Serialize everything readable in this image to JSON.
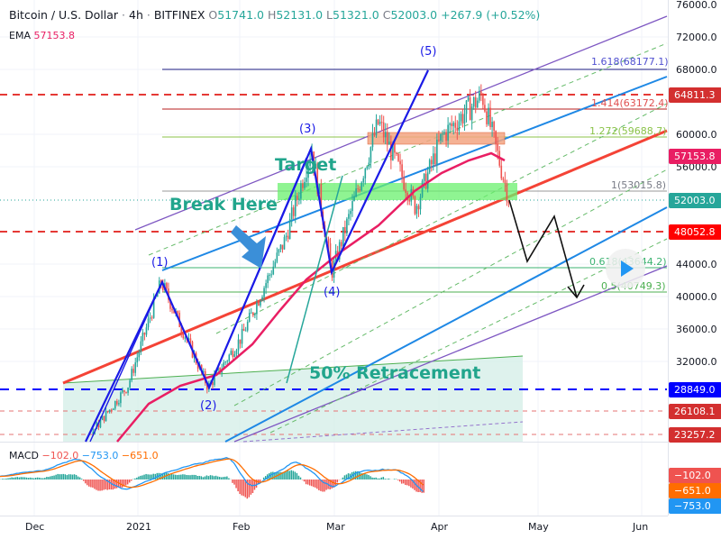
{
  "header": {
    "symbol": "Bitcoin / U.S. Dollar",
    "interval": "4h",
    "exchange": "BITFINEX",
    "open_label": "O",
    "open": "51741.0",
    "high_label": "H",
    "high": "52131.0",
    "low_label": "L",
    "low": "51321.0",
    "close_label": "C",
    "close": "52003.0",
    "change": "+267.9 (+0.52%)",
    "sep": "·"
  },
  "ema": {
    "label": "EMA",
    "value": "57153.8"
  },
  "macd": {
    "label": "MACD",
    "hist": "−102.0",
    "macd": "−753.0",
    "signal": "−651.0"
  },
  "price_axis": [
    "76000.0",
    "72000.0",
    "68000.0",
    "60000.0",
    "56000.0",
    "44000.0",
    "40000.0",
    "36000.0",
    "32000.0"
  ],
  "price_tags": [
    {
      "value": "64811.3",
      "color": "#d32f2f"
    },
    {
      "value": "57153.8",
      "color": "#e91e63"
    },
    {
      "value": "52003.0",
      "color": "#26a69a"
    },
    {
      "value": "48052.8",
      "color": "#ff0000"
    },
    {
      "value": "28849.0",
      "color": "#0000ff"
    },
    {
      "value": "26108.1",
      "color": "#d32f2f"
    },
    {
      "value": "23257.2",
      "color": "#d32f2f"
    }
  ],
  "macd_tags": [
    {
      "value": "−102.0",
      "color": "#ef5350"
    },
    {
      "value": "−651.0",
      "color": "#ff6d00"
    },
    {
      "value": "−753.0",
      "color": "#2196f3"
    }
  ],
  "time_axis": [
    "Dec",
    "2021",
    "Feb",
    "Mar",
    "Apr",
    "May",
    "Jun"
  ],
  "fib_labels": [
    {
      "text": "1.618(68177.1)",
      "color": "#5050d0"
    },
    {
      "text": "1.414(63172.4)",
      "color": "#e05050"
    },
    {
      "text": "1.272(59688.7)",
      "color": "#8bc34a"
    },
    {
      "text": "1(53015.8)",
      "color": "#787b86"
    },
    {
      "text": "0.618(43644.2)",
      "color": "#3cb371"
    },
    {
      "text": "0.5(40749.3)",
      "color": "#4caf50"
    }
  ],
  "annotations": {
    "target": "Target",
    "break_here": "Break Here",
    "retracement": "50% Retracement"
  },
  "waves": [
    "(1)",
    "(2)",
    "(3)",
    "(4)",
    "(5)"
  ],
  "chart_data": {
    "type": "candlestick",
    "price_swings": [
      {
        "day": 0,
        "price": 19000
      },
      {
        "day": 15,
        "price": 22000
      },
      {
        "day": 28,
        "price": 29000
      },
      {
        "day": 38,
        "price": 41800
      },
      {
        "day": 52,
        "price": 28800
      },
      {
        "day": 62,
        "price": 35000
      },
      {
        "day": 75,
        "price": 47000
      },
      {
        "day": 83,
        "price": 58300
      },
      {
        "day": 89,
        "price": 43000
      },
      {
        "day": 103,
        "price": 61500
      },
      {
        "day": 114,
        "price": 51000
      },
      {
        "day": 122,
        "price": 59800
      },
      {
        "day": 134,
        "price": 64800
      },
      {
        "day": 142,
        "price": 52000
      }
    ]
  }
}
